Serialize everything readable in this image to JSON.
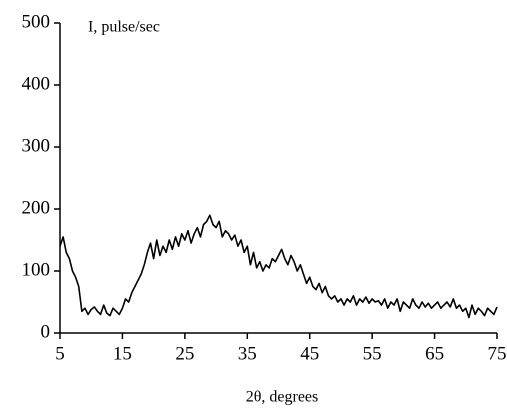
{
  "chart_data": {
    "type": "line",
    "y_label": "I, pulse/sec",
    "x_label": "2θ, degrees",
    "x": [
      5,
      5.5,
      6,
      6.5,
      7,
      7.5,
      8,
      8.5,
      9,
      9.5,
      10,
      10.5,
      11,
      11.5,
      12,
      12.5,
      13,
      13.5,
      14,
      14.5,
      15,
      15.5,
      16,
      16.5,
      17,
      17.5,
      18,
      18.5,
      19,
      19.5,
      20,
      20.5,
      21,
      21.5,
      22,
      22.5,
      23,
      23.5,
      24,
      24.5,
      25,
      25.5,
      26,
      26.5,
      27,
      27.5,
      28,
      28.5,
      29,
      29.5,
      30,
      30.5,
      31,
      31.5,
      32,
      32.5,
      33,
      33.5,
      34,
      34.5,
      35,
      35.5,
      36,
      36.5,
      37,
      37.5,
      38,
      38.5,
      39,
      39.5,
      40,
      40.5,
      41,
      41.5,
      42,
      42.5,
      43,
      43.5,
      44,
      44.5,
      45,
      45.5,
      46,
      46.5,
      47,
      47.5,
      48,
      48.5,
      49,
      49.5,
      50,
      50.5,
      51,
      51.5,
      52,
      52.5,
      53,
      53.5,
      54,
      54.5,
      55,
      55.5,
      56,
      56.5,
      57,
      57.5,
      58,
      58.5,
      59,
      59.5,
      60,
      60.5,
      61,
      61.5,
      62,
      62.5,
      63,
      63.5,
      64,
      64.5,
      65,
      65.5,
      66,
      66.5,
      67,
      67.5,
      68,
      68.5,
      69,
      69.5,
      70,
      70.5,
      71,
      71.5,
      72,
      72.5,
      73,
      73.5,
      74,
      74.5,
      75
    ],
    "series": [
      {
        "color": "#000000",
        "values": [
          140,
          155,
          130,
          120,
          100,
          90,
          75,
          35,
          40,
          30,
          38,
          42,
          35,
          30,
          45,
          32,
          28,
          40,
          35,
          30,
          40,
          55,
          50,
          65,
          75,
          85,
          95,
          110,
          130,
          145,
          120,
          150,
          125,
          140,
          130,
          150,
          135,
          155,
          140,
          160,
          150,
          165,
          145,
          160,
          170,
          155,
          175,
          180,
          190,
          175,
          170,
          180,
          155,
          165,
          160,
          150,
          158,
          140,
          150,
          130,
          140,
          110,
          130,
          105,
          115,
          100,
          110,
          105,
          120,
          115,
          125,
          135,
          120,
          110,
          125,
          115,
          100,
          110,
          95,
          80,
          90,
          75,
          70,
          80,
          65,
          75,
          60,
          55,
          60,
          50,
          55,
          45,
          55,
          50,
          60,
          45,
          55,
          50,
          58,
          48,
          55,
          50,
          52,
          45,
          55,
          40,
          50,
          45,
          55,
          35,
          50,
          45,
          40,
          55,
          45,
          40,
          50,
          42,
          48,
          40,
          45,
          50,
          40,
          45,
          50,
          42,
          55,
          40,
          45,
          35,
          40,
          25,
          45,
          30,
          40,
          35,
          28,
          40,
          35,
          30,
          42
        ]
      }
    ],
    "xlim": [
      5,
      75
    ],
    "xticks": [
      5,
      15,
      25,
      35,
      45,
      55,
      65,
      75
    ],
    "ylim": [
      0,
      500
    ],
    "yticks": [
      0,
      100,
      200,
      300,
      400,
      500
    ]
  }
}
